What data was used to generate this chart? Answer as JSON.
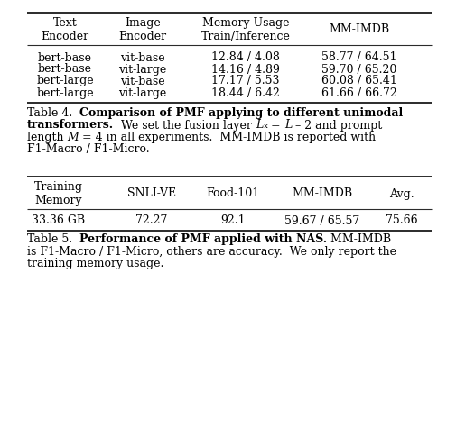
{
  "bg_color": "#ffffff",
  "table4_headers": [
    "Text\nEncoder",
    "Image\nEncoder",
    "Memory Usage\nTrain/Inference",
    "MM-IMDB"
  ],
  "table4_rows": [
    [
      "bert-base",
      "vit-base",
      "12.84 / 4.08",
      "58.77 / 64.51"
    ],
    [
      "bert-base",
      "vit-large",
      "14.16 / 4.89",
      "59.70 / 65.20"
    ],
    [
      "bert-large",
      "vit-base",
      "17.17 / 5.53",
      "60.08 / 65.41"
    ],
    [
      "bert-large",
      "vit-large",
      "18.44 / 6.42",
      "61.66 / 66.72"
    ]
  ],
  "table5_headers": [
    "Training\nMemory",
    "SNLI-VE",
    "Food-101",
    "MM-IMDB",
    "Avg."
  ],
  "table5_rows": [
    [
      "33.36 GB",
      "72.27",
      "92.1",
      "59.67 / 65.57",
      "75.66"
    ]
  ],
  "font_size": 9.0,
  "line_color": "#2b2b2b",
  "lw_thick": 1.4,
  "lw_thin": 0.8
}
